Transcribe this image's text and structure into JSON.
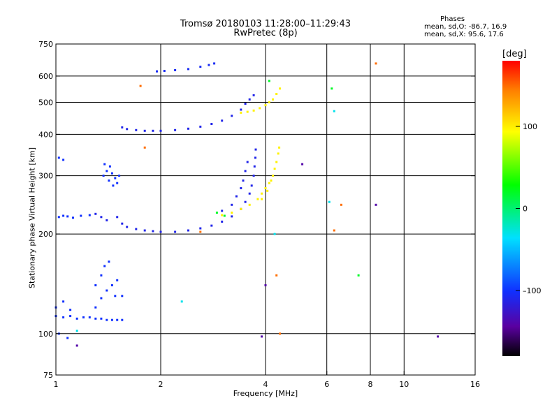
{
  "header": {
    "title_line1": "Tromsø 20180103 11:28:00–11:29:43",
    "title_line2": "RwPretec (8p)",
    "phase_title": "Phases",
    "stat_o": "mean, sd,O: -86.7, 16.9",
    "stat_x": "mean, sd,X:  95.6, 17.6"
  },
  "colorbar": {
    "unit": "[deg]",
    "tick_labels": [
      "100",
      "0",
      "–100"
    ],
    "tick_values": [
      100,
      0,
      -100
    ],
    "range": [
      -180,
      180
    ]
  },
  "chart_data": {
    "type": "scatter",
    "title": "Tromsø 20180103 11:28:00–11:29:43",
    "subtitle": "RwPretec (8p)",
    "xlabel": "Frequency [MHz]",
    "ylabel": "Stationary phase Virtual Height [km]",
    "x_scale": "log",
    "y_scale": "log",
    "xlim": [
      1,
      16
    ],
    "ylim": [
      75,
      750
    ],
    "x_ticks": [
      1,
      2,
      4,
      6,
      8,
      10,
      16
    ],
    "y_ticks": [
      75,
      100,
      200,
      300,
      400,
      500,
      600,
      750
    ],
    "x_gridlines": [
      2,
      4,
      6,
      8,
      10
    ],
    "y_gridlines": [
      100,
      200,
      300,
      400,
      500,
      600
    ],
    "grid": true,
    "colorbar_label": "[deg]",
    "series": [
      {
        "phase_deg": -100,
        "points": [
          [
            1.0,
            113
          ],
          [
            1.05,
            112
          ],
          [
            1.1,
            113
          ],
          [
            1.15,
            111
          ],
          [
            1.2,
            112
          ],
          [
            1.25,
            112
          ],
          [
            1.3,
            111
          ],
          [
            1.35,
            111
          ],
          [
            1.4,
            110
          ],
          [
            1.45,
            110
          ],
          [
            1.5,
            110
          ],
          [
            1.55,
            110
          ],
          [
            1.0,
            120
          ],
          [
            1.05,
            125
          ],
          [
            1.1,
            118
          ],
          [
            1.02,
            100
          ],
          [
            1.08,
            97
          ],
          [
            1.3,
            140
          ],
          [
            1.35,
            150
          ],
          [
            1.38,
            160
          ],
          [
            1.42,
            165
          ],
          [
            1.45,
            140
          ],
          [
            1.48,
            130
          ],
          [
            1.5,
            145
          ],
          [
            1.55,
            130
          ],
          [
            1.3,
            120
          ],
          [
            1.35,
            128
          ],
          [
            1.4,
            135
          ]
        ]
      },
      {
        "phase_deg": -100,
        "points": [
          [
            1.02,
            225
          ],
          [
            1.05,
            227
          ],
          [
            1.08,
            226
          ],
          [
            1.12,
            224
          ],
          [
            1.18,
            227
          ],
          [
            1.25,
            228
          ]
        ]
      },
      {
        "phase_deg": -100,
        "points": [
          [
            1.02,
            340
          ],
          [
            1.05,
            335
          ]
        ]
      },
      {
        "phase_deg": -100,
        "points": [
          [
            1.37,
            300
          ],
          [
            1.4,
            310
          ],
          [
            1.43,
            320
          ],
          [
            1.45,
            305
          ],
          [
            1.48,
            295
          ],
          [
            1.5,
            285
          ],
          [
            1.52,
            300
          ],
          [
            1.38,
            325
          ],
          [
            1.42,
            290
          ],
          [
            1.46,
            280
          ]
        ]
      },
      {
        "phase_deg": -110,
        "points": [
          [
            1.5,
            225
          ],
          [
            1.55,
            215
          ],
          [
            1.6,
            210
          ],
          [
            1.7,
            207
          ],
          [
            1.8,
            205
          ],
          [
            1.9,
            204
          ],
          [
            2.0,
            203
          ],
          [
            2.2,
            203
          ],
          [
            2.4,
            205
          ],
          [
            2.6,
            208
          ],
          [
            2.8,
            212
          ],
          [
            3.0,
            218
          ],
          [
            3.2,
            226
          ],
          [
            3.4,
            238
          ],
          [
            3.5,
            250
          ],
          [
            3.6,
            265
          ],
          [
            3.65,
            280
          ],
          [
            3.7,
            300
          ],
          [
            3.72,
            320
          ],
          [
            3.74,
            340
          ],
          [
            3.75,
            360
          ]
        ]
      },
      {
        "phase_deg": -110,
        "points": [
          [
            1.3,
            230
          ],
          [
            1.35,
            225
          ],
          [
            1.4,
            220
          ],
          [
            3.0,
            235
          ],
          [
            3.2,
            245
          ],
          [
            3.3,
            260
          ],
          [
            3.4,
            275
          ],
          [
            3.45,
            290
          ],
          [
            3.5,
            310
          ],
          [
            3.55,
            330
          ]
        ]
      },
      {
        "phase_deg": -110,
        "points": [
          [
            1.55,
            420
          ],
          [
            1.6,
            415
          ],
          [
            1.7,
            412
          ],
          [
            1.8,
            410
          ],
          [
            1.9,
            410
          ],
          [
            2.0,
            410
          ],
          [
            2.2,
            412
          ],
          [
            2.4,
            416
          ],
          [
            2.6,
            422
          ],
          [
            2.8,
            430
          ],
          [
            3.0,
            440
          ],
          [
            3.2,
            455
          ],
          [
            3.4,
            475
          ],
          [
            3.5,
            495
          ],
          [
            3.6,
            510
          ],
          [
            3.7,
            525
          ]
        ]
      },
      {
        "phase_deg": -105,
        "points": [
          [
            1.95,
            620
          ],
          [
            2.05,
            622
          ],
          [
            2.2,
            625
          ],
          [
            2.4,
            630
          ],
          [
            2.6,
            640
          ],
          [
            2.75,
            648
          ],
          [
            2.85,
            655
          ]
        ]
      },
      {
        "phase_deg": 100,
        "points": [
          [
            3.0,
            228
          ],
          [
            3.2,
            232
          ],
          [
            3.4,
            238
          ],
          [
            3.6,
            245
          ],
          [
            3.8,
            255
          ],
          [
            3.9,
            265
          ],
          [
            4.0,
            275
          ],
          [
            4.1,
            285
          ],
          [
            4.2,
            300
          ],
          [
            4.25,
            315
          ],
          [
            4.3,
            330
          ],
          [
            4.35,
            350
          ],
          [
            4.38,
            365
          ],
          [
            3.9,
            255
          ],
          [
            4.05,
            270
          ],
          [
            4.15,
            290
          ]
        ]
      },
      {
        "phase_deg": 100,
        "points": [
          [
            3.4,
            465
          ],
          [
            3.55,
            468
          ],
          [
            3.7,
            472
          ],
          [
            3.85,
            480
          ],
          [
            4.0,
            490
          ],
          [
            4.1,
            500
          ],
          [
            4.2,
            510
          ],
          [
            4.3,
            530
          ],
          [
            4.4,
            550
          ]
        ]
      },
      {
        "phase_deg": 20,
        "points": [
          [
            2.9,
            232
          ],
          [
            3.05,
            227
          ],
          [
            6.2,
            550
          ],
          [
            7.4,
            150
          ],
          [
            4.1,
            580
          ]
        ]
      },
      {
        "phase_deg": 150,
        "points": [
          [
            1.75,
            560
          ],
          [
            1.8,
            365
          ],
          [
            2.6,
            203
          ],
          [
            6.3,
            205
          ],
          [
            6.6,
            245
          ],
          [
            8.3,
            655
          ],
          [
            4.3,
            150
          ],
          [
            4.4,
            100
          ]
        ]
      },
      {
        "phase_deg": -30,
        "points": [
          [
            6.3,
            470
          ],
          [
            2.3,
            125
          ],
          [
            4.25,
            200
          ],
          [
            6.1,
            250
          ],
          [
            1.15,
            102
          ]
        ]
      },
      {
        "phase_deg": -140,
        "points": [
          [
            5.1,
            325
          ],
          [
            8.3,
            245
          ],
          [
            4.0,
            140
          ],
          [
            12.5,
            98
          ],
          [
            1.15,
            92
          ],
          [
            3.9,
            98
          ]
        ]
      }
    ]
  }
}
